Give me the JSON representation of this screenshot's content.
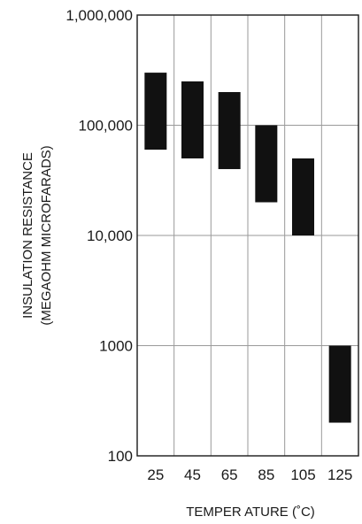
{
  "chart_data": {
    "type": "bar",
    "subtype": "floating-range",
    "title": "",
    "xlabel": "TEMPER ATURE (˚C)",
    "ylabel_line1": "INSULATION RESISTANCE",
    "ylabel_line2": "(MEGAOHM MICROFARADS)",
    "yscale": "log",
    "ylim": [
      100,
      1000000
    ],
    "grid": true,
    "y_ticks": [
      {
        "value": 100,
        "label": "100"
      },
      {
        "value": 1000,
        "label": "1000"
      },
      {
        "value": 10000,
        "label": "10,000"
      },
      {
        "value": 100000,
        "label": "100,000"
      },
      {
        "value": 1000000,
        "label": "1,000,000"
      }
    ],
    "categories": [
      "25",
      "45",
      "65",
      "85",
      "105",
      "125"
    ],
    "ranges": [
      {
        "category": "25",
        "low": 60000,
        "high": 300000
      },
      {
        "category": "45",
        "low": 50000,
        "high": 250000
      },
      {
        "category": "65",
        "low": 40000,
        "high": 200000
      },
      {
        "category": "85",
        "low": 20000,
        "high": 100000
      },
      {
        "category": "105",
        "low": 10000,
        "high": 50000
      },
      {
        "category": "125",
        "low": 200,
        "high": 1000
      }
    ],
    "bar_color": "#111111"
  }
}
